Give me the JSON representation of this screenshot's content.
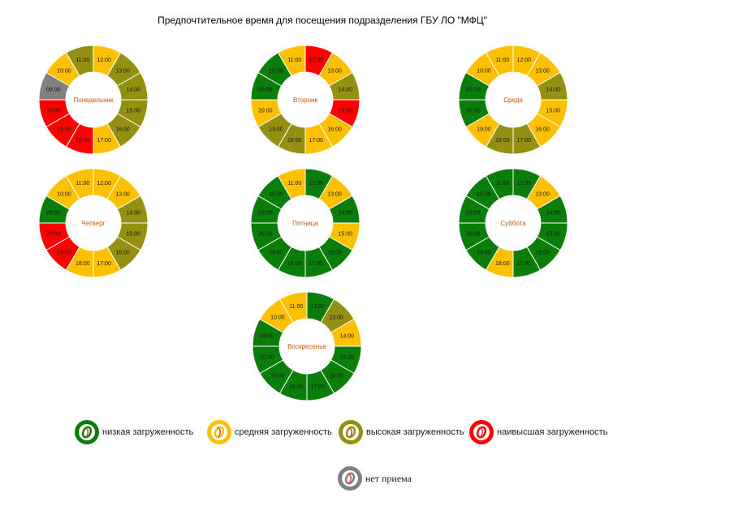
{
  "title": "Предпочтительное время для посещения подразделения ГБУ ЛО \"МФЦ\"",
  "colors": {
    "low": "#0a7d0a",
    "medium": "#ffc000",
    "high": "#949112",
    "highest": "#ff0000",
    "closed": "#808080",
    "day_label": "#c55a11"
  },
  "legend": [
    {
      "key": "low",
      "label": "низкая загруженность",
      "icon": "circle-swatch-icon"
    },
    {
      "key": "medium",
      "label": "средняя загруженность",
      "icon": "circle-swatch-icon"
    },
    {
      "key": "high",
      "label": "высокая загруженность",
      "icon": "circle-swatch-icon"
    },
    {
      "key": "highest",
      "label": "наивысшая загруженность",
      "icon": "circle-swatch-icon"
    },
    {
      "key": "closed",
      "label": "нет приема",
      "icon": "circle-swatch-icon"
    }
  ],
  "chart_data": [
    {
      "type": "donut",
      "title": "Понедельник",
      "slices": [
        {
          "label": "12:00",
          "load": "medium"
        },
        {
          "label": "13:00",
          "load": "high"
        },
        {
          "label": "14:00",
          "load": "high"
        },
        {
          "label": "15:00",
          "load": "high"
        },
        {
          "label": "16:00",
          "load": "high"
        },
        {
          "label": "17:00",
          "load": "medium"
        },
        {
          "label": "18:00",
          "load": "highest"
        },
        {
          "label": "19:00",
          "load": "highest"
        },
        {
          "label": "20:00",
          "load": "highest"
        },
        {
          "label": "09:00",
          "load": "closed"
        },
        {
          "label": "10:00",
          "load": "medium"
        },
        {
          "label": "11:00",
          "load": "high"
        }
      ]
    },
    {
      "type": "donut",
      "title": "Вторник",
      "slices": [
        {
          "label": "12:00",
          "load": "highest"
        },
        {
          "label": "13:00",
          "load": "medium"
        },
        {
          "label": "14:00",
          "load": "high"
        },
        {
          "label": "15:00",
          "load": "highest"
        },
        {
          "label": "16:00",
          "load": "medium"
        },
        {
          "label": "17:00",
          "load": "medium"
        },
        {
          "label": "18:00",
          "load": "high"
        },
        {
          "label": "19:00",
          "load": "high"
        },
        {
          "label": "20:00",
          "load": "medium"
        },
        {
          "label": "09:00",
          "load": "low"
        },
        {
          "label": "10:00",
          "load": "low"
        },
        {
          "label": "11:00",
          "load": "medium"
        }
      ]
    },
    {
      "type": "donut",
      "title": "Среда",
      "slices": [
        {
          "label": "12:00",
          "load": "medium"
        },
        {
          "label": "13:00",
          "load": "medium"
        },
        {
          "label": "14:00",
          "load": "high"
        },
        {
          "label": "15:00",
          "load": "medium"
        },
        {
          "label": "16:00",
          "load": "medium"
        },
        {
          "label": "17:00",
          "load": "high"
        },
        {
          "label": "18:00",
          "load": "high"
        },
        {
          "label": "19:00",
          "load": "medium"
        },
        {
          "label": "20:00",
          "load": "low"
        },
        {
          "label": "09:00",
          "load": "low"
        },
        {
          "label": "10:00",
          "load": "medium"
        },
        {
          "label": "11:00",
          "load": "medium"
        }
      ]
    },
    {
      "type": "donut",
      "title": "Четверг",
      "slices": [
        {
          "label": "12:00",
          "load": "medium"
        },
        {
          "label": "13:00",
          "load": "medium"
        },
        {
          "label": "14:00",
          "load": "high"
        },
        {
          "label": "15:00",
          "load": "high"
        },
        {
          "label": "16:00",
          "load": "high"
        },
        {
          "label": "17:00",
          "load": "medium"
        },
        {
          "label": "18:00",
          "load": "medium"
        },
        {
          "label": "19:00",
          "load": "highest"
        },
        {
          "label": "20:00",
          "load": "highest"
        },
        {
          "label": "09:00",
          "load": "low"
        },
        {
          "label": "10:00",
          "load": "medium"
        },
        {
          "label": "11:00",
          "load": "medium"
        }
      ]
    },
    {
      "type": "donut",
      "title": "Пятница",
      "slices": [
        {
          "label": "12:00",
          "load": "low"
        },
        {
          "label": "13:00",
          "load": "medium"
        },
        {
          "label": "14:00",
          "load": "low"
        },
        {
          "label": "15:00",
          "load": "medium"
        },
        {
          "label": "16:00",
          "load": "low"
        },
        {
          "label": "17:00",
          "load": "low"
        },
        {
          "label": "18:00",
          "load": "low"
        },
        {
          "label": "19:00",
          "load": "low"
        },
        {
          "label": "20:00",
          "load": "low"
        },
        {
          "label": "09:00",
          "load": "low"
        },
        {
          "label": "10:00",
          "load": "low"
        },
        {
          "label": "11:00",
          "load": "medium"
        }
      ]
    },
    {
      "type": "donut",
      "title": "Суббота",
      "slices": [
        {
          "label": "12:00",
          "load": "low"
        },
        {
          "label": "13:00",
          "load": "medium"
        },
        {
          "label": "14:00",
          "load": "low"
        },
        {
          "label": "15:00",
          "load": "low"
        },
        {
          "label": "16:00",
          "load": "low"
        },
        {
          "label": "17:00",
          "load": "low"
        },
        {
          "label": "18:00",
          "load": "medium"
        },
        {
          "label": "19:00",
          "load": "low"
        },
        {
          "label": "20:00",
          "load": "low"
        },
        {
          "label": "09:00",
          "load": "low"
        },
        {
          "label": "10:00",
          "load": "low"
        },
        {
          "label": "11:00",
          "load": "low"
        }
      ]
    },
    {
      "type": "donut",
      "title": "Воскресенье",
      "slices": [
        {
          "label": "12:00",
          "load": "low"
        },
        {
          "label": "13:00",
          "load": "high"
        },
        {
          "label": "14:00",
          "load": "medium"
        },
        {
          "label": "15:00",
          "load": "low"
        },
        {
          "label": "16:00",
          "load": "low"
        },
        {
          "label": "17:00",
          "load": "low"
        },
        {
          "label": "18:00",
          "load": "low"
        },
        {
          "label": "19:00",
          "load": "low"
        },
        {
          "label": "20:00",
          "load": "low"
        },
        {
          "label": "09:00",
          "load": "low"
        },
        {
          "label": "10:00",
          "load": "medium"
        },
        {
          "label": "11:00",
          "load": "medium"
        }
      ]
    }
  ]
}
